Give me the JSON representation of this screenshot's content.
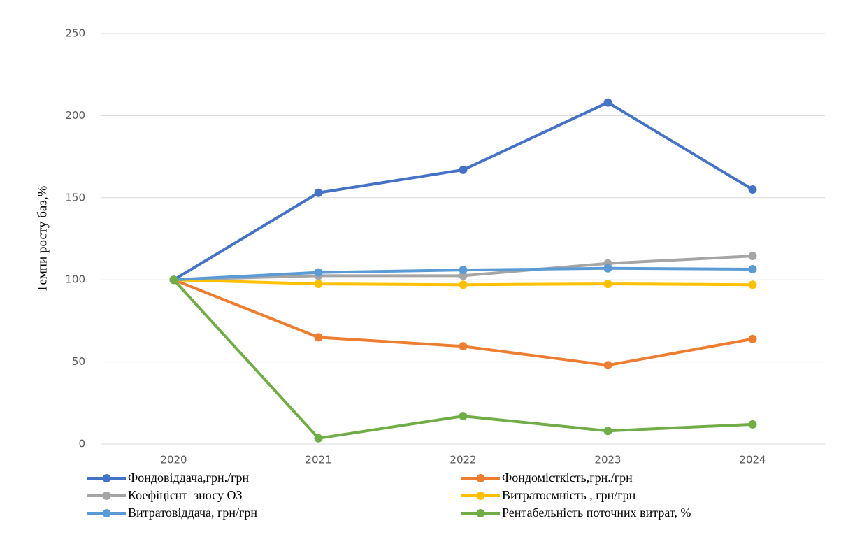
{
  "chart_data": {
    "type": "line",
    "y_label": "Темпи росту баз,%",
    "categories": [
      "2020",
      "2021",
      "2022",
      "2023",
      "2024"
    ],
    "ylim": [
      0,
      250
    ],
    "yticks": [
      0,
      50,
      100,
      150,
      200,
      250
    ],
    "grid": true,
    "series": [
      {
        "name": "Фондовіддача,грн./грн",
        "color": "#4472c4",
        "values": [
          100,
          153,
          167,
          208,
          155
        ]
      },
      {
        "name": "Фондомісткість,грн./грн",
        "color": "#ed7d31",
        "values": [
          100,
          65,
          59.5,
          48,
          64
        ]
      },
      {
        "name": "Коефіцієнт  зносу ОЗ",
        "color": "#a5a5a5",
        "values": [
          100,
          102.5,
          102.5,
          110,
          114.5
        ]
      },
      {
        "name": "Витратоємність , грн/грн",
        "color": "#ffc000",
        "values": [
          100,
          97.5,
          97,
          97.5,
          97
        ]
      },
      {
        "name": "Витратовіддача, грн/грн",
        "color": "#5b9bd5",
        "values": [
          100,
          104.5,
          106,
          107,
          106.5
        ]
      },
      {
        "name": "Рентабельність поточних витрат, %",
        "color": "#70ad47",
        "values": [
          100,
          3.5,
          17,
          8,
          12
        ]
      }
    ]
  }
}
